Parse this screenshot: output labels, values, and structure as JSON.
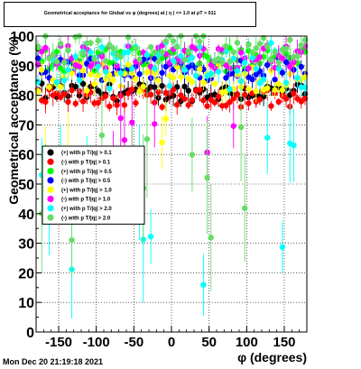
{
  "chart_data": {
    "type": "scatter",
    "title": "Geometrical acceptance for Global vs φ (degrees) at |  η | <= 1.0 at pT > 011",
    "xlabel": "φ (degrees)",
    "ylabel": "Geometrical acceptance (%)",
    "xlim": [
      -180,
      180
    ],
    "ylim": [
      0,
      100
    ],
    "x_ticks": [
      -150,
      -100,
      -50,
      0,
      50,
      100,
      150
    ],
    "y_ticks": [
      0,
      10,
      20,
      30,
      40,
      50,
      60,
      70,
      80,
      90,
      100
    ],
    "grid": true,
    "legend_position": "left-middle",
    "series": [
      {
        "name": "(+) with p T/|q| > 0.1",
        "color": "#000000",
        "mean": 81,
        "spread": 3
      },
      {
        "name": "(-) with p T/|q| > 0.1",
        "color": "#ff0000",
        "mean": 79,
        "spread": 3
      },
      {
        "name": "(+) with p T/|q| > 0.5",
        "color": "#00ff00",
        "mean": 92,
        "spread": 4
      },
      {
        "name": "(-) with p T/|q| > 0.5",
        "color": "#0000ff",
        "mean": 89,
        "spread": 4
      },
      {
        "name": "(+) with p T/|q| > 1.0",
        "color": "#ffff00",
        "mean": 86,
        "spread": 5
      },
      {
        "name": "(-) with p T/|q| > 1.0",
        "color": "#ff00ff",
        "mean": 93,
        "spread": 4
      },
      {
        "name": "(+) with p T/|q| > 2.0",
        "color": "#00ffff",
        "mean": 90,
        "spread": 8
      },
      {
        "name": "(-) with p T/|q| > 2.0",
        "color": "#66dd66",
        "mean": 96,
        "spread": 5
      }
    ]
  },
  "footer": {
    "timestamp": "Mon Dec 20 21:19:18 2021"
  }
}
